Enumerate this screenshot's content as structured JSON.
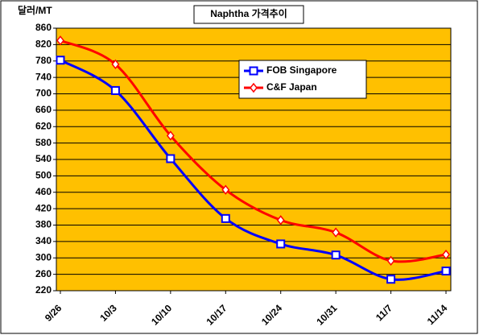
{
  "chart_data": {
    "type": "line",
    "title": "Naphtha 가격추이",
    "y_label": "달러/MT",
    "categories": [
      "9/26",
      "10/3",
      "10/10",
      "10/17",
      "10/24",
      "10/31",
      "11/7",
      "11/14"
    ],
    "series": [
      {
        "name": "FOB Singapore",
        "color": "#0000ff",
        "marker": "square",
        "values": [
          782,
          708,
          542,
          396,
          334,
          307,
          248,
          268
        ]
      },
      {
        "name": "C&F Japan",
        "color": "#ff0000",
        "marker": "diamond",
        "values": [
          830,
          772,
          598,
          466,
          392,
          362,
          293,
          308
        ]
      }
    ],
    "ylim": [
      220,
      860
    ],
    "yticks": [
      220,
      260,
      300,
      340,
      380,
      420,
      460,
      500,
      540,
      580,
      620,
      660,
      700,
      740,
      780,
      820,
      860
    ],
    "grid": true,
    "plot_background": "#ffc000"
  }
}
